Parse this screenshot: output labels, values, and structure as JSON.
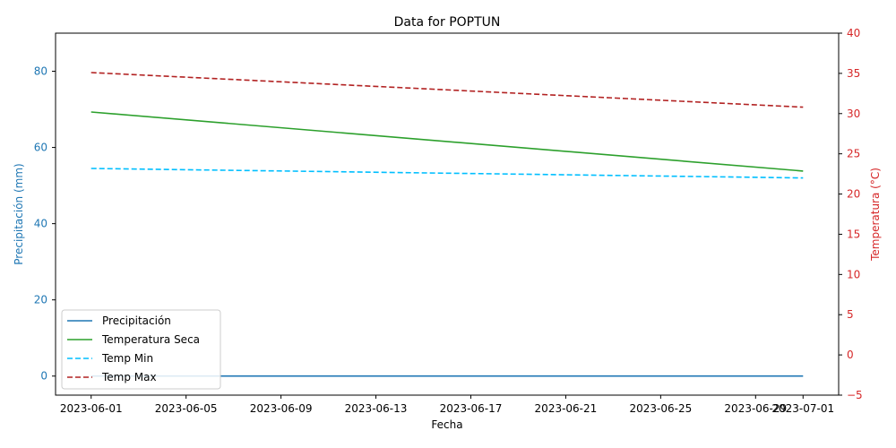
{
  "chart_data": {
    "type": "line",
    "title": "Data for POPTUN",
    "xlabel": "Fecha",
    "ylabel_left": "Precipitación (mm)",
    "ylabel_right": "Temperatura (°C)",
    "x_start": "2023-06-01",
    "x_end": "2023-07-01",
    "x_ticks": [
      "2023-06-01",
      "2023-06-05",
      "2023-06-09",
      "2023-06-13",
      "2023-06-17",
      "2023-06-21",
      "2023-06-25",
      "2023-06-29",
      "2023-07-01"
    ],
    "ylim_left": [
      -5,
      90
    ],
    "yticks_left": [
      "0",
      "20",
      "40",
      "60",
      "80"
    ],
    "ylim_right": [
      -5,
      40
    ],
    "yticks_right": [
      "−5",
      "0",
      "5",
      "10",
      "15",
      "20",
      "25",
      "30",
      "35",
      "40"
    ],
    "left_axis_color": "#1f77b4",
    "right_axis_color": "#d62728",
    "legend_position": "lower-left",
    "series": [
      {
        "name": "Precipitación",
        "axis": "left",
        "color": "#1f77b4",
        "dash": "solid",
        "points": [
          {
            "x": "2023-06-01",
            "y": 0
          },
          {
            "x": "2023-07-01",
            "y": 0
          }
        ]
      },
      {
        "name": "Temperatura Seca",
        "axis": "left",
        "color": "#2ca02c",
        "dash": "solid",
        "points": [
          {
            "x": "2023-06-01",
            "y": 69.3
          },
          {
            "x": "2023-07-01",
            "y": 53.8
          }
        ]
      },
      {
        "name": "Temp Min",
        "axis": "left",
        "color": "#00bfff",
        "dash": "dashed",
        "points": [
          {
            "x": "2023-06-01",
            "y": 54.5
          },
          {
            "x": "2023-07-01",
            "y": 52.0
          }
        ]
      },
      {
        "name": "Temp Max",
        "axis": "right",
        "color": "#b22222",
        "dash": "dashed",
        "points": [
          {
            "x": "2023-06-01",
            "y": 35.1
          },
          {
            "x": "2023-07-01",
            "y": 30.8
          }
        ]
      }
    ]
  }
}
